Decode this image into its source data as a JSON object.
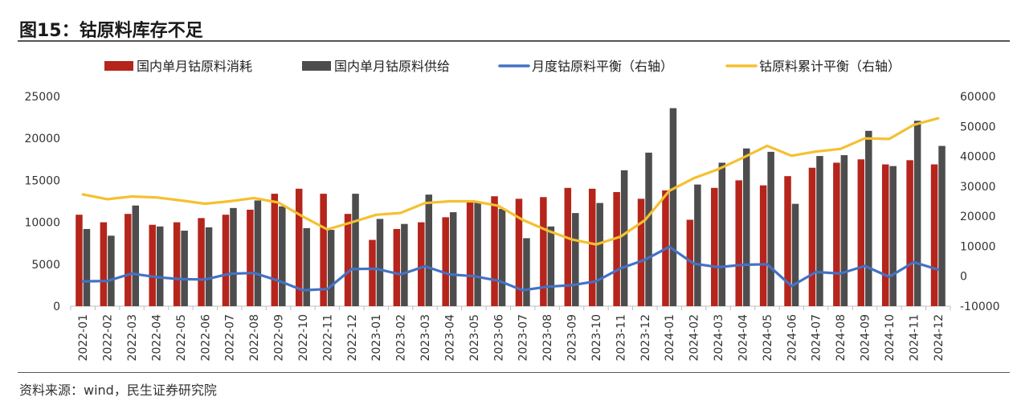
{
  "title": "图15：钴原料库存不足",
  "source": "资料来源：wind，民生证券研究院",
  "chart_data": {
    "type": "bar",
    "categories": [
      "2022-01",
      "2022-02",
      "2022-03",
      "2022-04",
      "2022-05",
      "2022-06",
      "2022-07",
      "2022-08",
      "2022-09",
      "2022-10",
      "2022-11",
      "2022-12",
      "2023-01",
      "2023-02",
      "2023-03",
      "2023-04",
      "2023-05",
      "2023-06",
      "2023-07",
      "2023-08",
      "2023-09",
      "2023-10",
      "2023-11",
      "2023-12",
      "2024-01",
      "2024-02",
      "2024-03",
      "2024-04",
      "2024-05",
      "2024-06",
      "2024-07",
      "2024-08",
      "2024-09",
      "2024-10",
      "2024-11",
      "2024-12"
    ],
    "left_axis": {
      "ylim": [
        0,
        25000
      ],
      "ticks": [
        "0",
        "5000",
        "10000",
        "15000",
        "20000",
        "25000"
      ]
    },
    "right_axis": {
      "ylim": [
        -10000,
        60000
      ],
      "ticks": [
        "-10000",
        "0",
        "10000",
        "20000",
        "30000",
        "40000",
        "50000",
        "60000"
      ]
    },
    "legend_position": "top",
    "series": [
      {
        "name": "国内单月钴原料消耗",
        "kind": "bar",
        "axis": "left",
        "color": "#b5251b",
        "values": [
          10900,
          10000,
          11000,
          9700,
          10000,
          10500,
          10900,
          11500,
          13400,
          14000,
          13400,
          11000,
          7900,
          9200,
          10000,
          10600,
          12500,
          13100,
          12800,
          13000,
          14100,
          14000,
          13600,
          12800,
          13800,
          10300,
          14100,
          15000,
          14400,
          15500,
          16500,
          17100,
          17500,
          16900,
          17400,
          16900
        ]
      },
      {
        "name": "国内单月钴原料供给",
        "kind": "bar",
        "axis": "left",
        "color": "#4d4d4d",
        "values": [
          9200,
          8400,
          12000,
          9500,
          9000,
          9400,
          11700,
          12600,
          11900,
          9300,
          9100,
          13400,
          10400,
          9800,
          13300,
          11200,
          12500,
          11600,
          8100,
          9500,
          11100,
          12300,
          16200,
          18300,
          23600,
          14500,
          17100,
          18800,
          18400,
          12200,
          17900,
          18000,
          20900,
          16700,
          22100,
          19100
        ]
      },
      {
        "name": "月度钴原料平衡（右轴）",
        "kind": "line",
        "axis": "right",
        "color": "#4472c4",
        "values": [
          -1700,
          -1600,
          900,
          -300,
          -1000,
          -1100,
          800,
          1100,
          -1500,
          -4700,
          -4300,
          2400,
          2500,
          600,
          3300,
          600,
          0,
          -1500,
          -4700,
          -3500,
          -3000,
          -1700,
          2600,
          5500,
          9800,
          4200,
          3000,
          3800,
          4000,
          -3300,
          1400,
          900,
          3400,
          -200,
          4700,
          2200
        ]
      },
      {
        "name": "钴原料累计平衡（右轴）",
        "kind": "line",
        "axis": "right",
        "color": "#f5c030",
        "values": [
          27300,
          25700,
          26600,
          26300,
          25300,
          24200,
          25000,
          26100,
          24600,
          19900,
          15600,
          18000,
          20500,
          21100,
          24400,
          25000,
          25000,
          23500,
          18800,
          15300,
          12300,
          10600,
          13200,
          18700,
          28500,
          32700,
          35700,
          39500,
          43500,
          40200,
          41600,
          42500,
          46000,
          45800,
          50500,
          52700
        ]
      }
    ]
  }
}
